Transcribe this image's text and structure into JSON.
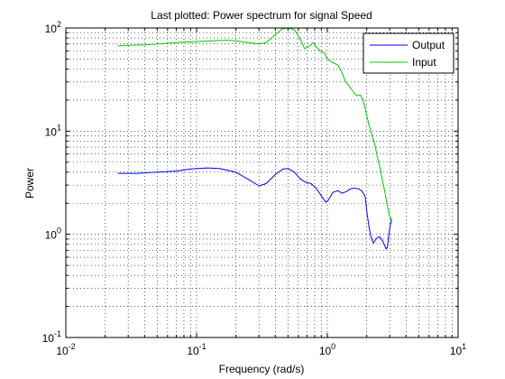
{
  "chart_data": {
    "type": "line",
    "title": "Last plotted: Power spectrum for signal Speed",
    "xlabel": "Frequency (rad/s)",
    "ylabel": "Power",
    "x_scale": "log",
    "y_scale": "log",
    "xlim": [
      0.01,
      10
    ],
    "ylim": [
      0.1,
      100
    ],
    "grid": true,
    "legend_position": "top-right",
    "x_tick_labels": [
      {
        "base": "10",
        "exp": "-2",
        "value": 0.01
      },
      {
        "base": "10",
        "exp": "-1",
        "value": 0.1
      },
      {
        "base": "10",
        "exp": "0",
        "value": 1
      },
      {
        "base": "10",
        "exp": "1",
        "value": 10
      }
    ],
    "y_tick_labels": [
      {
        "base": "10",
        "exp": "-1",
        "value": 0.1
      },
      {
        "base": "10",
        "exp": "0",
        "value": 1
      },
      {
        "base": "10",
        "exp": "1",
        "value": 10
      },
      {
        "base": "10",
        "exp": "2",
        "value": 100
      }
    ],
    "series": [
      {
        "name": "Output",
        "color": "#0000ff",
        "points": [
          [
            0.025,
            3.9
          ],
          [
            0.035,
            3.9
          ],
          [
            0.05,
            4.0
          ],
          [
            0.07,
            4.1
          ],
          [
            0.09,
            4.3
          ],
          [
            0.12,
            4.4
          ],
          [
            0.15,
            4.35
          ],
          [
            0.2,
            4.0
          ],
          [
            0.25,
            3.4
          ],
          [
            0.3,
            2.95
          ],
          [
            0.34,
            3.1
          ],
          [
            0.4,
            3.8
          ],
          [
            0.46,
            4.3
          ],
          [
            0.5,
            4.35
          ],
          [
            0.56,
            4.0
          ],
          [
            0.62,
            3.45
          ],
          [
            0.68,
            3.2
          ],
          [
            0.75,
            3.1
          ],
          [
            0.82,
            2.8
          ],
          [
            0.9,
            2.35
          ],
          [
            0.97,
            2.05
          ],
          [
            1.02,
            2.15
          ],
          [
            1.1,
            2.55
          ],
          [
            1.2,
            2.65
          ],
          [
            1.3,
            2.5
          ],
          [
            1.4,
            2.6
          ],
          [
            1.5,
            2.75
          ],
          [
            1.6,
            2.8
          ],
          [
            1.75,
            2.75
          ],
          [
            1.85,
            2.6
          ],
          [
            1.95,
            2.3
          ],
          [
            2.0,
            1.7
          ],
          [
            2.08,
            1.2
          ],
          [
            2.15,
            0.95
          ],
          [
            2.25,
            0.82
          ],
          [
            2.35,
            0.9
          ],
          [
            2.5,
            0.95
          ],
          [
            2.62,
            0.88
          ],
          [
            2.72,
            0.8
          ],
          [
            2.82,
            0.72
          ],
          [
            2.88,
            0.75
          ],
          [
            2.95,
            0.98
          ],
          [
            3.02,
            1.2
          ],
          [
            3.1,
            1.4
          ]
        ]
      },
      {
        "name": "Input",
        "color": "#00c800",
        "points": [
          [
            0.025,
            67
          ],
          [
            0.03,
            68
          ],
          [
            0.04,
            68.5
          ],
          [
            0.05,
            70
          ],
          [
            0.06,
            71
          ],
          [
            0.08,
            73
          ],
          [
            0.1,
            74
          ],
          [
            0.13,
            75
          ],
          [
            0.17,
            76
          ],
          [
            0.2,
            75
          ],
          [
            0.25,
            72
          ],
          [
            0.3,
            70
          ],
          [
            0.34,
            72
          ],
          [
            0.4,
            86
          ],
          [
            0.45,
            98
          ],
          [
            0.5,
            100
          ],
          [
            0.56,
            96
          ],
          [
            0.62,
            78
          ],
          [
            0.67,
            63
          ],
          [
            0.72,
            66
          ],
          [
            0.78,
            72
          ],
          [
            0.82,
            66
          ],
          [
            0.88,
            60
          ],
          [
            0.95,
            57
          ],
          [
            1.0,
            50
          ],
          [
            1.1,
            46
          ],
          [
            1.2,
            44
          ],
          [
            1.28,
            38
          ],
          [
            1.38,
            30
          ],
          [
            1.48,
            27
          ],
          [
            1.58,
            24
          ],
          [
            1.68,
            22
          ],
          [
            1.78,
            22.5
          ],
          [
            1.88,
            20
          ],
          [
            1.98,
            15
          ],
          [
            2.1,
            11
          ],
          [
            2.2,
            9
          ],
          [
            2.3,
            7.5
          ],
          [
            2.42,
            5.5
          ],
          [
            2.55,
            4.2
          ],
          [
            2.65,
            3.2
          ],
          [
            2.75,
            2.6
          ],
          [
            2.85,
            2.0
          ],
          [
            2.95,
            1.6
          ],
          [
            3.05,
            1.4
          ],
          [
            3.1,
            1.45
          ]
        ]
      }
    ]
  }
}
